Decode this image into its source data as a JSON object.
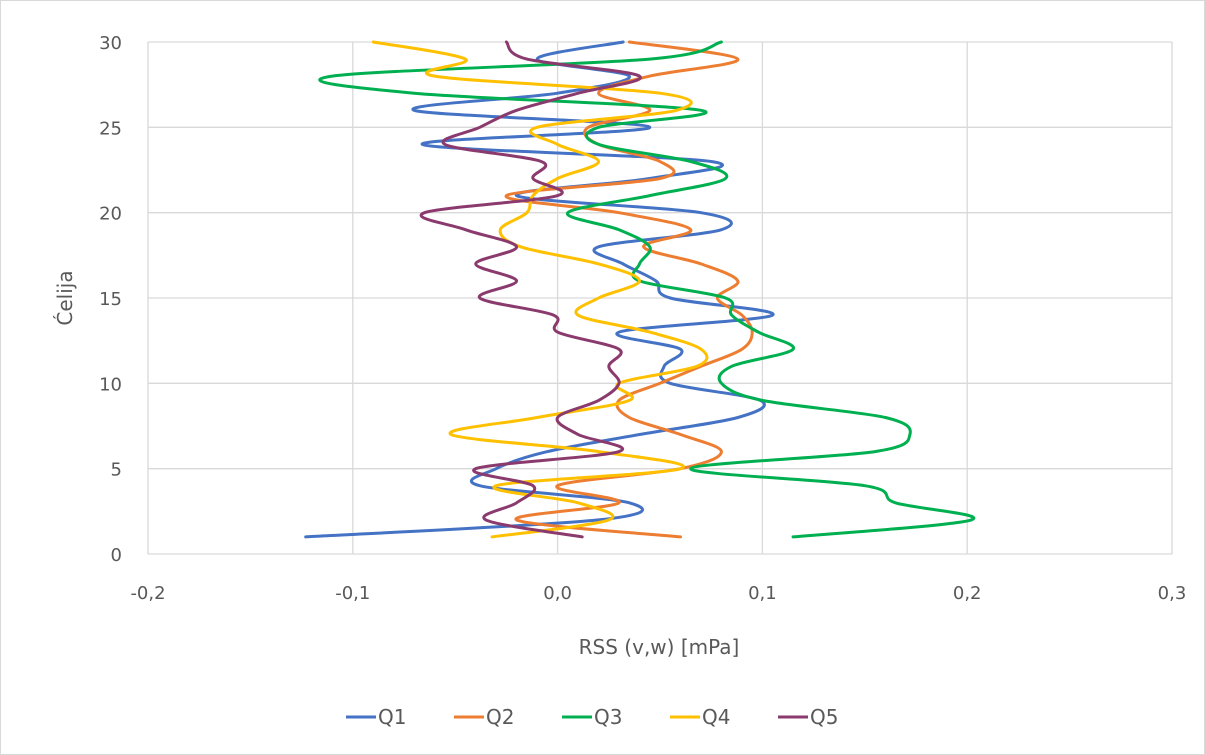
{
  "chart_data": {
    "type": "line",
    "title": "",
    "xlabel": "RSS (v,w) [mPa]",
    "ylabel": "Ćelija",
    "xlim": [
      -0.2,
      0.3
    ],
    "ylim": [
      0,
      30
    ],
    "x_ticks": [
      -0.2,
      -0.1,
      0.0,
      0.1,
      0.2,
      0.3
    ],
    "x_tick_labels": [
      "-0,2",
      "-0,1",
      "0,0",
      "0,1",
      "0,2",
      "0,3"
    ],
    "y_ticks": [
      0,
      5,
      10,
      15,
      20,
      25,
      30
    ],
    "y_tick_labels": [
      "0",
      "5",
      "10",
      "15",
      "20",
      "25",
      "30"
    ],
    "grid": true,
    "legend_position": "bottom",
    "y": [
      1,
      2,
      3,
      4,
      5,
      6,
      7,
      8,
      9,
      10,
      11,
      12,
      13,
      14,
      15,
      16,
      17,
      18,
      19,
      20,
      21,
      22,
      23,
      24,
      25,
      26,
      27,
      28,
      29,
      30
    ],
    "series": [
      {
        "name": "Q1",
        "color": "#4472C4",
        "values": [
          -0.123,
          0.02,
          0.035,
          -0.038,
          -0.03,
          -0.005,
          0.04,
          0.088,
          0.099,
          0.055,
          0.052,
          0.06,
          0.03,
          0.105,
          0.055,
          0.048,
          0.032,
          0.02,
          0.08,
          0.07,
          -0.02,
          0.045,
          0.075,
          -0.066,
          0.045,
          -0.07,
          0.0,
          0.035,
          -0.01,
          0.032
        ]
      },
      {
        "name": "Q2",
        "color": "#ED7D31",
        "values": [
          0.06,
          -0.02,
          0.03,
          0.0,
          0.06,
          0.08,
          0.06,
          0.035,
          0.03,
          0.05,
          0.07,
          0.09,
          0.095,
          0.09,
          0.078,
          0.088,
          0.07,
          0.042,
          0.065,
          0.03,
          -0.025,
          0.05,
          0.05,
          0.02,
          0.015,
          0.045,
          0.02,
          0.045,
          0.088,
          0.035
        ]
      },
      {
        "name": "Q3",
        "color": "#00B050",
        "values": [
          0.115,
          0.202,
          0.165,
          0.15,
          0.065,
          0.155,
          0.172,
          0.16,
          0.1,
          0.08,
          0.085,
          0.115,
          0.098,
          0.085,
          0.082,
          0.04,
          0.04,
          0.045,
          0.03,
          0.005,
          0.045,
          0.082,
          0.065,
          0.02,
          0.02,
          0.07,
          -0.07,
          -0.11,
          0.045,
          0.08
        ]
      },
      {
        "name": "Q4",
        "color": "#FFC000",
        "values": [
          -0.032,
          0.025,
          0.01,
          -0.03,
          0.06,
          0.02,
          -0.052,
          -0.01,
          0.035,
          0.03,
          0.068,
          0.07,
          0.045,
          0.01,
          0.02,
          0.04,
          0.02,
          -0.018,
          -0.028,
          -0.015,
          -0.012,
          0.0,
          0.02,
          0.0,
          -0.01,
          0.058,
          0.05,
          -0.06,
          -0.045,
          -0.09
        ]
      },
      {
        "name": "Q5",
        "color": "#8B3A6E",
        "values": [
          0.012,
          -0.035,
          -0.02,
          -0.012,
          -0.04,
          0.03,
          0.01,
          0.0,
          0.02,
          0.03,
          0.025,
          0.03,
          0.0,
          -0.002,
          -0.038,
          -0.02,
          -0.04,
          -0.02,
          -0.045,
          -0.065,
          0.0,
          -0.012,
          -0.008,
          -0.055,
          -0.038,
          -0.02,
          0.01,
          0.04,
          -0.015,
          -0.025
        ]
      }
    ]
  }
}
